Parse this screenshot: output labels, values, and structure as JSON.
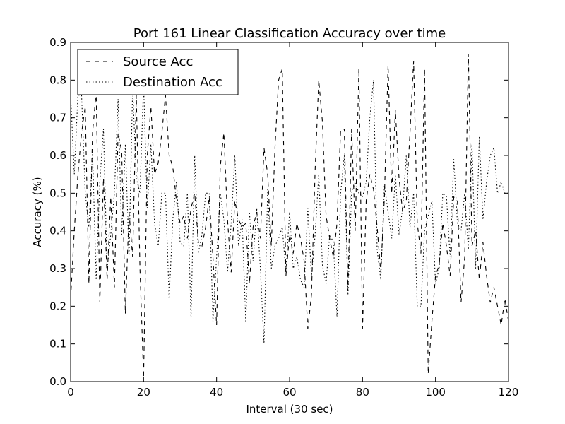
{
  "chart_data": {
    "type": "line",
    "title": "Port 161 Linear Classification Accuracy over time",
    "xlabel": "Interval (30 sec)",
    "ylabel": "Accuracy (%)",
    "xlim": [
      0,
      120
    ],
    "ylim": [
      0,
      0.9
    ],
    "xticks": [
      "0",
      "20",
      "40",
      "60",
      "80",
      "100",
      "120"
    ],
    "yticks": [
      "0.0",
      "0.1",
      "0.2",
      "0.3",
      "0.4",
      "0.5",
      "0.6",
      "0.7",
      "0.8",
      "0.9"
    ],
    "grid": false,
    "legend_position": "top-left",
    "series": [
      {
        "name": "Source Acc",
        "style": "dashed",
        "color": "#000000",
        "x": [
          0,
          1,
          2,
          3,
          4,
          5,
          6,
          7,
          8,
          9,
          10,
          11,
          12,
          13,
          14,
          15,
          16,
          17,
          18,
          19,
          20,
          21,
          22,
          23,
          24,
          25,
          26,
          27,
          28,
          29,
          30,
          31,
          32,
          33,
          34,
          35,
          36,
          37,
          38,
          39,
          40,
          41,
          42,
          43,
          44,
          45,
          46,
          47,
          48,
          49,
          50,
          51,
          52,
          53,
          54,
          55,
          56,
          57,
          58,
          59,
          60,
          61,
          62,
          63,
          64,
          65,
          66,
          67,
          68,
          69,
          70,
          71,
          72,
          73,
          74,
          75,
          76,
          77,
          78,
          79,
          80,
          81,
          82,
          83,
          84,
          85,
          86,
          87,
          88,
          89,
          90,
          91,
          92,
          93,
          94,
          95,
          96,
          97,
          98,
          99,
          100,
          101,
          102,
          103,
          104,
          105,
          106,
          107,
          108,
          109,
          110,
          111,
          112,
          113,
          114,
          115,
          116,
          117,
          118,
          119,
          120
        ],
        "values": [
          0.22,
          0.4,
          0.55,
          0.66,
          0.73,
          0.26,
          0.66,
          0.77,
          0.21,
          0.54,
          0.27,
          0.49,
          0.25,
          0.66,
          0.61,
          0.18,
          0.45,
          0.33,
          0.76,
          0.3,
          0.01,
          0.6,
          0.73,
          0.55,
          0.58,
          0.66,
          0.76,
          0.6,
          0.57,
          0.48,
          0.42,
          0.44,
          0.38,
          0.46,
          0.5,
          0.37,
          0.36,
          0.41,
          0.49,
          0.33,
          0.15,
          0.57,
          0.66,
          0.43,
          0.29,
          0.48,
          0.43,
          0.41,
          0.42,
          0.26,
          0.41,
          0.45,
          0.38,
          0.62,
          0.55,
          0.36,
          0.62,
          0.8,
          0.83,
          0.28,
          0.39,
          0.34,
          0.42,
          0.38,
          0.32,
          0.14,
          0.23,
          0.56,
          0.8,
          0.69,
          0.44,
          0.38,
          0.33,
          0.42,
          0.67,
          0.67,
          0.24,
          0.67,
          0.4,
          0.83,
          0.14,
          0.48,
          0.55,
          0.51,
          0.41,
          0.29,
          0.49,
          0.84,
          0.5,
          0.72,
          0.54,
          0.45,
          0.48,
          0.66,
          0.85,
          0.42,
          0.34,
          0.83,
          0.02,
          0.16,
          0.28,
          0.31,
          0.42,
          0.36,
          0.28,
          0.49,
          0.48,
          0.21,
          0.33,
          0.87,
          0.36,
          0.4,
          0.27,
          0.37,
          0.28,
          0.21,
          0.25,
          0.2,
          0.15,
          0.22,
          0.16
        ]
      },
      {
        "name": "Destination Acc",
        "style": "dotted",
        "color": "#000000",
        "x": [
          0,
          1,
          2,
          3,
          4,
          5,
          6,
          7,
          8,
          9,
          10,
          11,
          12,
          13,
          14,
          15,
          16,
          17,
          18,
          19,
          20,
          21,
          22,
          23,
          24,
          25,
          26,
          27,
          28,
          29,
          30,
          31,
          32,
          33,
          34,
          35,
          36,
          37,
          38,
          39,
          40,
          41,
          42,
          43,
          44,
          45,
          46,
          47,
          48,
          49,
          50,
          51,
          52,
          53,
          54,
          55,
          56,
          57,
          58,
          59,
          60,
          61,
          62,
          63,
          64,
          65,
          66,
          67,
          68,
          69,
          70,
          71,
          72,
          73,
          74,
          75,
          76,
          77,
          78,
          79,
          80,
          81,
          82,
          83,
          84,
          85,
          86,
          87,
          88,
          89,
          90,
          91,
          92,
          93,
          94,
          95,
          96,
          97,
          98,
          99,
          100,
          101,
          102,
          103,
          104,
          105,
          106,
          107,
          108,
          109,
          110,
          111,
          112,
          113,
          114,
          115,
          116,
          117,
          118,
          119,
          120
        ],
        "values": [
          0.76,
          0.55,
          0.76,
          0.76,
          0.5,
          0.41,
          0.61,
          0.27,
          0.53,
          0.67,
          0.3,
          0.39,
          0.5,
          0.75,
          0.39,
          0.63,
          0.33,
          0.78,
          0.54,
          0.5,
          0.79,
          0.46,
          0.63,
          0.42,
          0.36,
          0.5,
          0.5,
          0.22,
          0.43,
          0.53,
          0.37,
          0.36,
          0.5,
          0.17,
          0.6,
          0.34,
          0.39,
          0.5,
          0.5,
          0.16,
          0.33,
          0.5,
          0.43,
          0.29,
          0.42,
          0.6,
          0.36,
          0.43,
          0.16,
          0.45,
          0.32,
          0.46,
          0.3,
          0.1,
          0.51,
          0.3,
          0.36,
          0.38,
          0.41,
          0.29,
          0.45,
          0.3,
          0.33,
          0.27,
          0.25,
          0.46,
          0.28,
          0.39,
          0.55,
          0.31,
          0.26,
          0.39,
          0.37,
          0.17,
          0.5,
          0.6,
          0.23,
          0.5,
          0.53,
          0.5,
          0.49,
          0.53,
          0.7,
          0.8,
          0.35,
          0.27,
          0.52,
          0.45,
          0.38,
          0.55,
          0.39,
          0.46,
          0.6,
          0.41,
          0.5,
          0.2,
          0.2,
          0.4,
          0.44,
          0.48,
          0.26,
          0.3,
          0.5,
          0.49,
          0.33,
          0.59,
          0.42,
          0.4,
          0.5,
          0.35,
          0.63,
          0.3,
          0.65,
          0.43,
          0.53,
          0.6,
          0.62,
          0.5,
          0.53,
          0.5,
          0.5
        ]
      }
    ]
  }
}
